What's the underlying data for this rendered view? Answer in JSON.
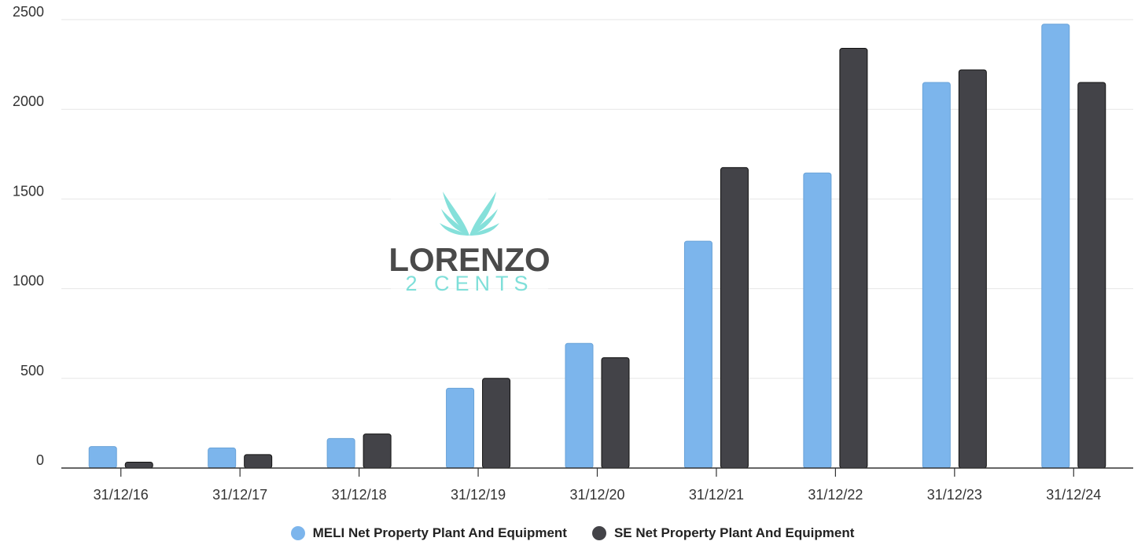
{
  "chart_data": {
    "type": "bar",
    "categories": [
      "31/12/16",
      "31/12/17",
      "31/12/18",
      "31/12/19",
      "31/12/20",
      "31/12/21",
      "31/12/22",
      "31/12/23",
      "31/12/24"
    ],
    "series": [
      {
        "name": "MELI Net Property Plant And Equipment",
        "color": "#7cb5ec",
        "values": [
          120,
          112,
          165,
          445,
          695,
          1265,
          1645,
          2150,
          2475
        ]
      },
      {
        "name": "SE Net Property Plant And Equipment",
        "color": "#434348",
        "values": [
          33,
          75,
          190,
          500,
          615,
          1675,
          2340,
          2220,
          2150
        ]
      }
    ],
    "y_ticks": [
      0,
      500,
      1000,
      1500,
      2000,
      2500
    ],
    "ylim": [
      0,
      2500
    ],
    "grid": true,
    "legend_position": "bottom-center"
  },
  "watermark": {
    "logo_icon": "wings-logo-icon",
    "line1": "LORENZO",
    "line2": "2 CENTS",
    "accent": "#7fdfd9",
    "text_color": "#4a4a4a"
  }
}
